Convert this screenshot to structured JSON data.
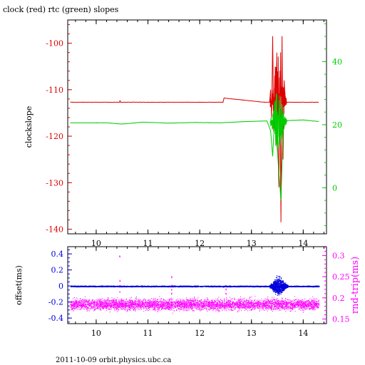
{
  "title": "clock (red) rtc (green) slopes",
  "footer": "2011-10-09  orbit.physics.ubc.ca",
  "colors": {
    "clock": "#dd0000",
    "rtc": "#00cc00",
    "offset": "#0000dd",
    "roundtrip": "#ff00ff",
    "frame": "#000000"
  },
  "chart_data": [
    {
      "type": "line",
      "ylabel": "clockslope",
      "y2label": "",
      "xlim": [
        9.45,
        14.45
      ],
      "x_ticks": [
        "10",
        "11",
        "12",
        "13",
        "14"
      ],
      "ylim": [
        -141,
        -95
      ],
      "y_ticks": [
        "-100",
        "-110",
        "-120",
        "-130",
        "-140"
      ],
      "y2lim": [
        -14.6,
        53.2
      ],
      "y2_ticks": [
        "0",
        "20",
        "40"
      ],
      "series": [
        {
          "name": "clock",
          "axis": "left",
          "x": [
            9.5,
            10.45,
            10.46,
            10.47,
            11.5,
            12.45,
            12.47,
            13.25,
            13.35,
            13.37,
            13.39,
            13.41,
            13.43,
            13.45,
            13.47,
            13.49,
            13.51,
            13.53,
            13.55,
            13.57,
            13.59,
            13.61,
            13.63,
            13.66,
            13.7,
            14.3
          ],
          "values": [
            -112.7,
            -112.7,
            -112.4,
            -112.7,
            -112.7,
            -112.7,
            -111.8,
            -112.7,
            -112.7,
            -110.0,
            -116.0,
            -98.5,
            -119.0,
            -107.0,
            -122.0,
            -102.0,
            -121.0,
            -131.0,
            -110.0,
            -138.5,
            -98.5,
            -125.0,
            -108.0,
            -113.0,
            -112.7,
            -112.7
          ]
        },
        {
          "name": "rtc",
          "axis": "right",
          "x": [
            9.5,
            10.2,
            10.5,
            10.9,
            11.4,
            11.9,
            12.4,
            12.9,
            13.3,
            13.37,
            13.41,
            13.45,
            13.49,
            13.53,
            13.57,
            13.61,
            13.65,
            13.7,
            14.0,
            14.3
          ],
          "values": [
            20.6,
            20.6,
            20.2,
            20.8,
            20.5,
            20.7,
            20.6,
            21.0,
            21.2,
            18.0,
            10.0,
            23.0,
            14.0,
            5.0,
            -4.0,
            18.0,
            20.5,
            21.3,
            21.5,
            21.0
          ]
        }
      ]
    },
    {
      "type": "scatter",
      "ylabel": "offset(ms)",
      "y2label": "rnd-trip(ms)",
      "xlim": [
        9.45,
        14.45
      ],
      "x_ticks": [
        "10",
        "11",
        "12",
        "13",
        "14"
      ],
      "ylim": [
        -0.47,
        0.49
      ],
      "y_ticks": [
        "0.4",
        "0.2",
        "0",
        "-0.2",
        "-0.4"
      ],
      "y2lim": [
        0.139,
        0.321
      ],
      "y2_ticks": [
        "0.3",
        "0.25",
        "0.2",
        "0.15"
      ],
      "series": [
        {
          "name": "offset",
          "axis": "left",
          "baseline": 0.0,
          "burst": {
            "x_start": 13.35,
            "x_end": 13.7,
            "spread": 0.3
          }
        },
        {
          "name": "roundtrip",
          "axis": "right",
          "band": [
            0.165,
            0.21
          ],
          "center": 0.185,
          "spikes": [
            {
              "x": 10.45,
              "values": [
                0.215,
                0.23,
                0.24,
                0.3
              ]
            },
            {
              "x": 11.45,
              "values": [
                0.21,
                0.22,
                0.23,
                0.25
              ]
            },
            {
              "x": 12.5,
              "values": [
                0.21,
                0.22,
                0.23
              ]
            }
          ]
        }
      ]
    }
  ]
}
